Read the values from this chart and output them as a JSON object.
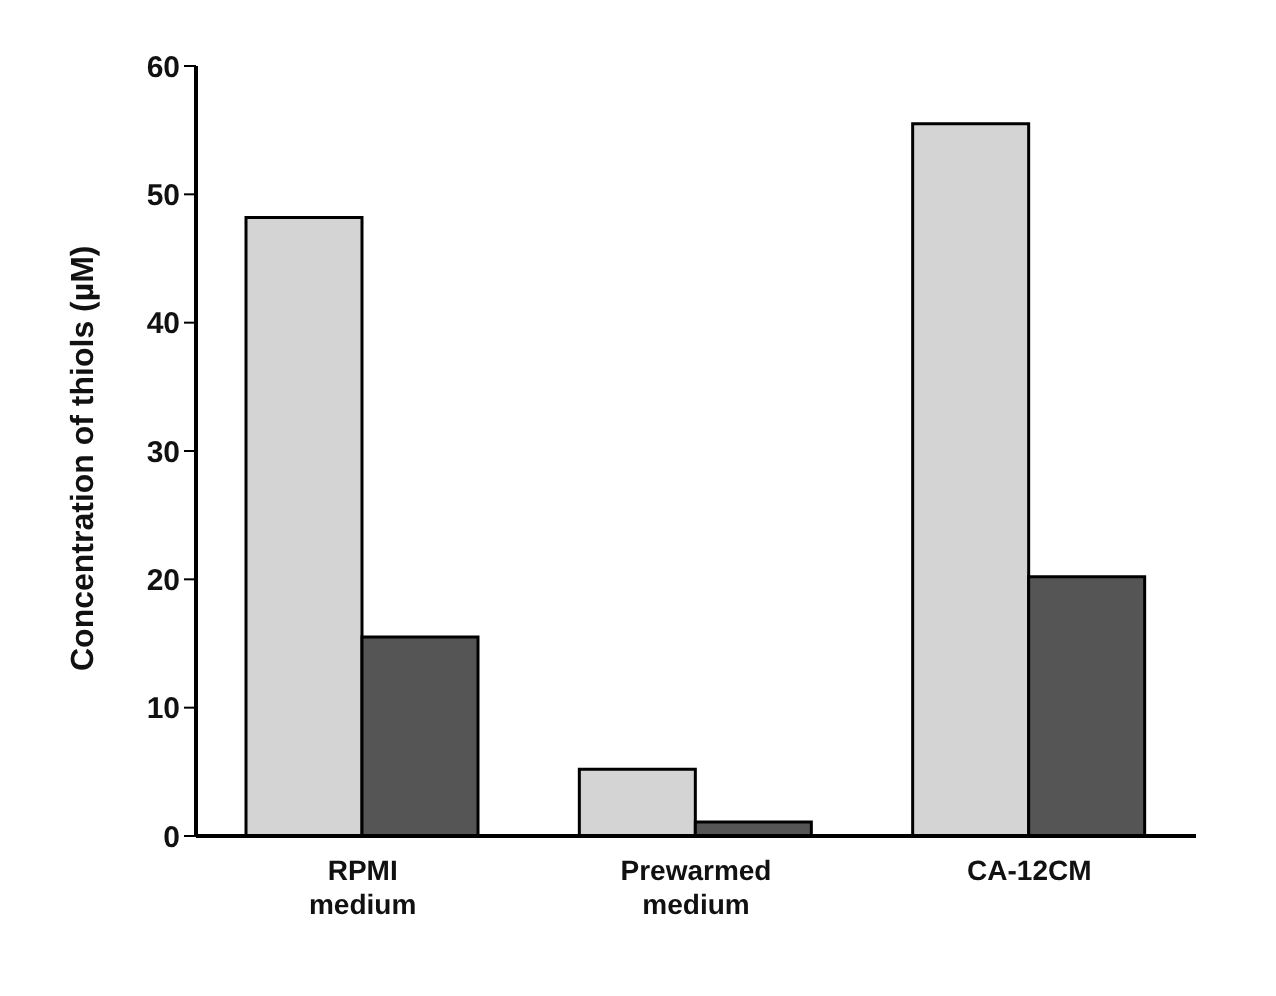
{
  "chart_data": {
    "type": "bar",
    "ylabel": "Concentration of thiols (µM)",
    "categories": [
      "RPMI medium",
      "Prewarmed medium",
      "CA-12CM"
    ],
    "series": [
      {
        "color": "#d4d4d4",
        "values": [
          48.2,
          5.2,
          55.5
        ]
      },
      {
        "color": "#555555",
        "values": [
          15.5,
          1.1,
          20.2
        ]
      }
    ],
    "ylim": [
      0,
      60
    ],
    "yticks": [
      0,
      10,
      20,
      30,
      40,
      50,
      60
    ],
    "grid": false,
    "legend": false
  }
}
